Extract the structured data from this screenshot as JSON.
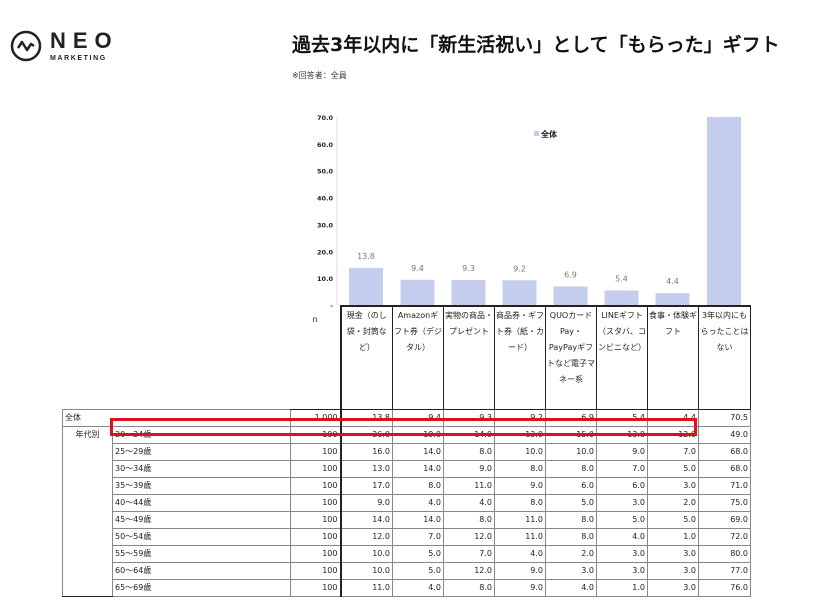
{
  "logo": {
    "name": "NEO",
    "tagline": "MARKETING"
  },
  "header": {
    "title": "過去3年以内に「新生活祝い」として「もらった」ギフト",
    "subtitle": "※回答者：全員"
  },
  "chart_data": {
    "type": "bar",
    "legend": "全体",
    "legend_position": "top-center",
    "ylim": [
      0,
      70
    ],
    "yticks": [
      "-",
      "10.0",
      "20.0",
      "30.0",
      "40.0",
      "50.0",
      "60.0",
      "70.0"
    ],
    "categories": [
      "現金（のし袋・封筒など）",
      "Amazonギフト券（デジタル）",
      "実物の商品・プレゼント",
      "商品券・ギフト券（紙・カード）",
      "QUOカードPay・PayPayギフトなど電子マネー系",
      "LINEギフト（スタバ、コンビニなど）",
      "食事・体験ギフト",
      "3年以内にもらったことはない"
    ],
    "values": [
      13.8,
      9.4,
      9.3,
      9.2,
      6.9,
      5.4,
      4.4,
      70.5
    ],
    "data_labels": [
      "13.8",
      "9.4",
      "9.3",
      "9.2",
      "6.9",
      "5.4",
      "4.4",
      ""
    ],
    "bar_color": "#c5cdef"
  },
  "table": {
    "n_header": "n",
    "total": {
      "label": "全体",
      "n": "1,000",
      "values": [
        "13.8",
        "9.4",
        "9.3",
        "9.2",
        "6.9",
        "5.4",
        "4.4",
        "70.5"
      ]
    },
    "group_label": "年代別",
    "rows": [
      {
        "label": "20〜24歳",
        "n": "100",
        "values": [
          "26.0",
          "19.0",
          "14.0",
          "13.0",
          "15.0",
          "13.0",
          "12.0",
          "49.0"
        ]
      },
      {
        "label": "25〜29歳",
        "n": "100",
        "values": [
          "16.0",
          "14.0",
          "8.0",
          "10.0",
          "10.0",
          "9.0",
          "7.0",
          "68.0"
        ]
      },
      {
        "label": "30〜34歳",
        "n": "100",
        "values": [
          "13.0",
          "14.0",
          "9.0",
          "8.0",
          "8.0",
          "7.0",
          "5.0",
          "68.0"
        ]
      },
      {
        "label": "35〜39歳",
        "n": "100",
        "values": [
          "17.0",
          "8.0",
          "11.0",
          "9.0",
          "6.0",
          "6.0",
          "3.0",
          "71.0"
        ]
      },
      {
        "label": "40〜44歳",
        "n": "100",
        "values": [
          "9.0",
          "4.0",
          "4.0",
          "8.0",
          "5.0",
          "3.0",
          "2.0",
          "75.0"
        ]
      },
      {
        "label": "45〜49歳",
        "n": "100",
        "values": [
          "14.0",
          "14.0",
          "8.0",
          "11.0",
          "8.0",
          "5.0",
          "5.0",
          "69.0"
        ]
      },
      {
        "label": "50〜54歳",
        "n": "100",
        "values": [
          "12.0",
          "7.0",
          "12.0",
          "11.0",
          "8.0",
          "4.0",
          "1.0",
          "72.0"
        ]
      },
      {
        "label": "55〜59歳",
        "n": "100",
        "values": [
          "10.0",
          "5.0",
          "7.0",
          "4.0",
          "2.0",
          "3.0",
          "3.0",
          "80.0"
        ]
      },
      {
        "label": "60〜64歳",
        "n": "100",
        "values": [
          "10.0",
          "5.0",
          "12.0",
          "9.0",
          "3.0",
          "3.0",
          "3.0",
          "77.0"
        ]
      },
      {
        "label": "65〜69歳",
        "n": "100",
        "values": [
          "11.0",
          "4.0",
          "8.0",
          "9.0",
          "4.0",
          "1.0",
          "3.0",
          "76.0"
        ]
      }
    ],
    "highlight_color": "#d9121b"
  }
}
